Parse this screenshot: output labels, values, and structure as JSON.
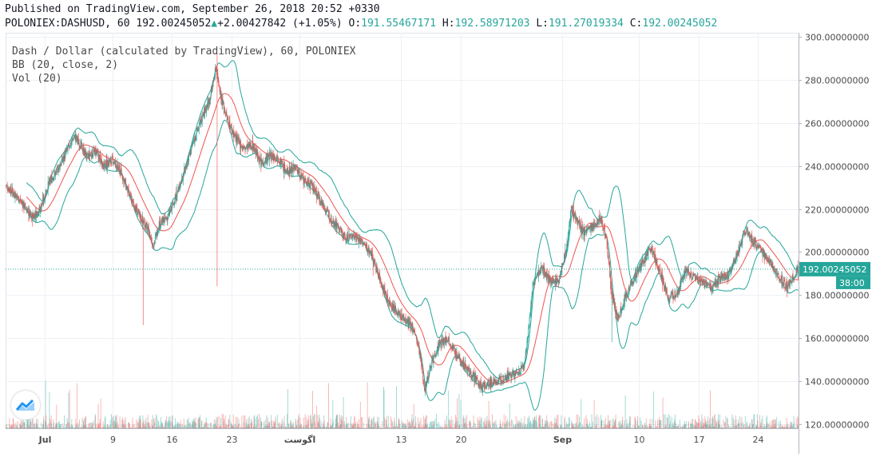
{
  "header": {
    "published": "Published on TradingView.com, September 26, 2018 20:52 +0330",
    "symbol": "POLONIEX:DASHUSD, 60",
    "last": "192.00245052",
    "change": "+2.00427842 (+1.05%)",
    "o_label": "O:",
    "o": "191.55467171",
    "h_label": "H:",
    "h": "192.58971203",
    "l_label": "L:",
    "l": "191.27019334",
    "c_label": "C:",
    "c": "192.00245052"
  },
  "legend": {
    "series": "Dash / Dollar (calculated by TradingView), 60, POLONIEX",
    "bb": "BB (20, close, 2)",
    "vol": "Vol (20)"
  },
  "price_tag": "192.00245052",
  "countdown": "38:00",
  "colors": {
    "up": "#26a69a",
    "down": "#ef5350",
    "bb_bands": "#26a69a",
    "bb_basis": "#ef5350",
    "price_line": "#26a69a"
  },
  "icons": {
    "logo": "tradingview-logo-icon"
  },
  "chart_data": {
    "type": "candlestick",
    "title": "Dash / Dollar (calculated by TradingView), 60, POLONIEX",
    "ylim": [
      118,
      302
    ],
    "y_ticks": [
      "120.00000000",
      "140.00000000",
      "160.00000000",
      "180.00000000",
      "200.00000000",
      "220.00000000",
      "240.00000000",
      "260.00000000",
      "280.00000000",
      "300.00000000"
    ],
    "y_tick_values": [
      120,
      140,
      160,
      180,
      200,
      220,
      240,
      260,
      280,
      300
    ],
    "x_ticks": [
      "Jul",
      "9",
      "16",
      "23",
      "اگوست",
      "13",
      "20",
      "Sep",
      "10",
      "17",
      "24"
    ],
    "x_tick_days": [
      0,
      8,
      15,
      22,
      30,
      42,
      49,
      61,
      70,
      77,
      84
    ],
    "x_range_days": [
      -4.6,
      88.8
    ],
    "grid": true,
    "last_value": 192.00245052,
    "price_path": [
      [
        -4.6,
        231
      ],
      [
        -3.5,
        227
      ],
      [
        -2.5,
        222
      ],
      [
        -1.5,
        216
      ],
      [
        -0.5,
        220
      ],
      [
        0.5,
        232
      ],
      [
        1.5,
        238
      ],
      [
        2.5,
        246
      ],
      [
        3.5,
        254
      ],
      [
        4.2,
        250
      ],
      [
        5.0,
        244
      ],
      [
        6.0,
        247
      ],
      [
        7.0,
        240
      ],
      [
        8.0,
        243
      ],
      [
        9.0,
        237
      ],
      [
        10.0,
        226
      ],
      [
        11.0,
        218
      ],
      [
        12.0,
        212
      ],
      [
        12.8,
        203
      ],
      [
        13.5,
        213
      ],
      [
        14.5,
        216
      ],
      [
        15.5,
        226
      ],
      [
        16.5,
        238
      ],
      [
        17.5,
        251
      ],
      [
        18.5,
        262
      ],
      [
        19.5,
        272
      ],
      [
        20.2,
        286
      ],
      [
        20.8,
        272
      ],
      [
        21.5,
        262
      ],
      [
        22.5,
        253
      ],
      [
        23.5,
        248
      ],
      [
        24.5,
        250
      ],
      [
        25.5,
        241
      ],
      [
        26.5,
        245
      ],
      [
        27.5,
        244
      ],
      [
        28.5,
        237
      ],
      [
        29.5,
        240
      ],
      [
        30.5,
        233
      ],
      [
        31.5,
        231
      ],
      [
        32.5,
        224
      ],
      [
        33.5,
        217
      ],
      [
        34.5,
        212
      ],
      [
        35.5,
        206
      ],
      [
        36.5,
        208
      ],
      [
        37.5,
        204
      ],
      [
        38.5,
        199
      ],
      [
        39.5,
        187
      ],
      [
        40.5,
        177
      ],
      [
        41.5,
        172
      ],
      [
        42.5,
        168
      ],
      [
        43.5,
        164
      ],
      [
        44.2,
        152
      ],
      [
        44.8,
        136
      ],
      [
        45.5,
        148
      ],
      [
        46.5,
        157
      ],
      [
        47.5,
        160
      ],
      [
        48.5,
        152
      ],
      [
        49.5,
        147
      ],
      [
        50.5,
        142
      ],
      [
        51.5,
        137
      ],
      [
        52.5,
        139
      ],
      [
        53.5,
        140
      ],
      [
        54.5,
        142
      ],
      [
        55.5,
        143
      ],
      [
        56.5,
        147
      ],
      [
        57.0,
        164
      ],
      [
        57.5,
        184
      ],
      [
        58.5,
        193
      ],
      [
        59.5,
        187
      ],
      [
        60.5,
        186
      ],
      [
        61.5,
        202
      ],
      [
        62.0,
        220
      ],
      [
        62.5,
        216
      ],
      [
        63.5,
        209
      ],
      [
        64.5,
        212
      ],
      [
        65.5,
        216
      ],
      [
        66.2,
        206
      ],
      [
        66.8,
        180
      ],
      [
        67.5,
        169
      ],
      [
        68.5,
        180
      ],
      [
        69.5,
        188
      ],
      [
        70.5,
        196
      ],
      [
        71.5,
        202
      ],
      [
        72.5,
        190
      ],
      [
        73.5,
        178
      ],
      [
        74.5,
        181
      ],
      [
        75.5,
        191
      ],
      [
        76.5,
        188
      ],
      [
        77.5,
        186
      ],
      [
        78.5,
        183
      ],
      [
        79.5,
        188
      ],
      [
        80.5,
        189
      ],
      [
        81.5,
        198
      ],
      [
        82.5,
        210
      ],
      [
        83.5,
        205
      ],
      [
        84.5,
        200
      ],
      [
        85.5,
        196
      ],
      [
        86.5,
        188
      ],
      [
        87.5,
        184
      ],
      [
        88.8,
        192
      ]
    ],
    "wick_spikes": [
      {
        "day": 11.6,
        "low": 166
      },
      {
        "day": 20.3,
        "high": 292,
        "low": 184
      },
      {
        "day": 38.7,
        "low": 189
      },
      {
        "day": 66.8,
        "low": 158
      }
    ],
    "bb_period": 20,
    "bb_mult": 2,
    "volume": {
      "label": "Vol (20)"
    }
  }
}
